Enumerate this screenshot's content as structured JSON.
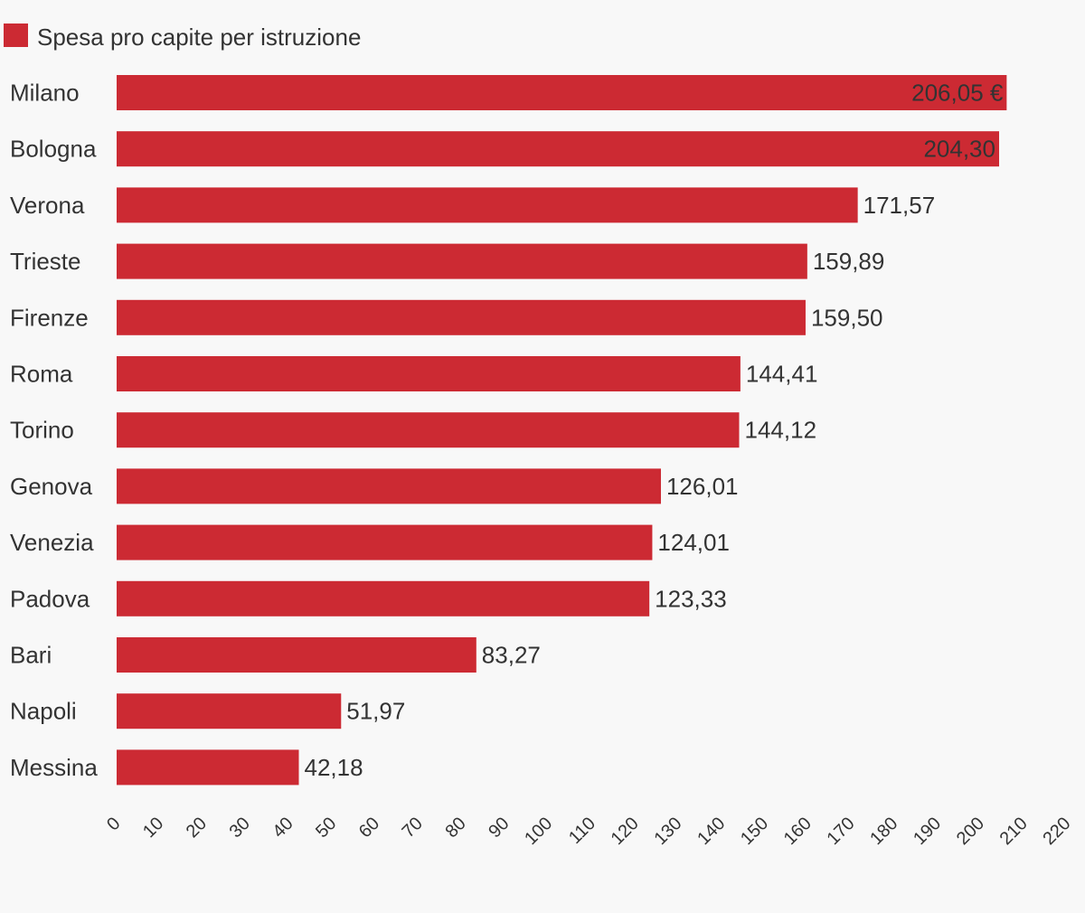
{
  "chart_data": {
    "type": "bar",
    "orientation": "horizontal",
    "legend": {
      "label": "Spesa pro capite per istruzione",
      "position": "top-left"
    },
    "series": [
      {
        "name": "Spesa pro capite per istruzione",
        "color": "#cc2a33",
        "values": [
          206.05,
          204.3,
          171.57,
          159.89,
          159.5,
          144.41,
          144.12,
          126.01,
          124.01,
          123.33,
          83.27,
          51.97,
          42.18
        ]
      }
    ],
    "categories": [
      "Milano",
      "Bologna",
      "Verona",
      "Trieste",
      "Firenze",
      "Roma",
      "Torino",
      "Genova",
      "Venezia",
      "Padova",
      "Bari",
      "Napoli",
      "Messina"
    ],
    "data_labels": [
      "206,05 €",
      "204,30",
      "171,57",
      "159,89",
      "159,50",
      "144,41",
      "144,12",
      "126,01",
      "124,01",
      "123,33",
      "83,27",
      "51,97",
      "42,18"
    ],
    "data_labels_inside": [
      true,
      true,
      false,
      false,
      false,
      false,
      false,
      false,
      false,
      false,
      false,
      false,
      false
    ],
    "xlim": [
      0,
      220
    ],
    "x_ticks": [
      "0",
      "10",
      "20",
      "30",
      "40",
      "50",
      "60",
      "70",
      "80",
      "90",
      "100",
      "110",
      "120",
      "130",
      "140",
      "150",
      "160",
      "170",
      "180",
      "190",
      "200",
      "210",
      "220"
    ],
    "grid": false
  }
}
